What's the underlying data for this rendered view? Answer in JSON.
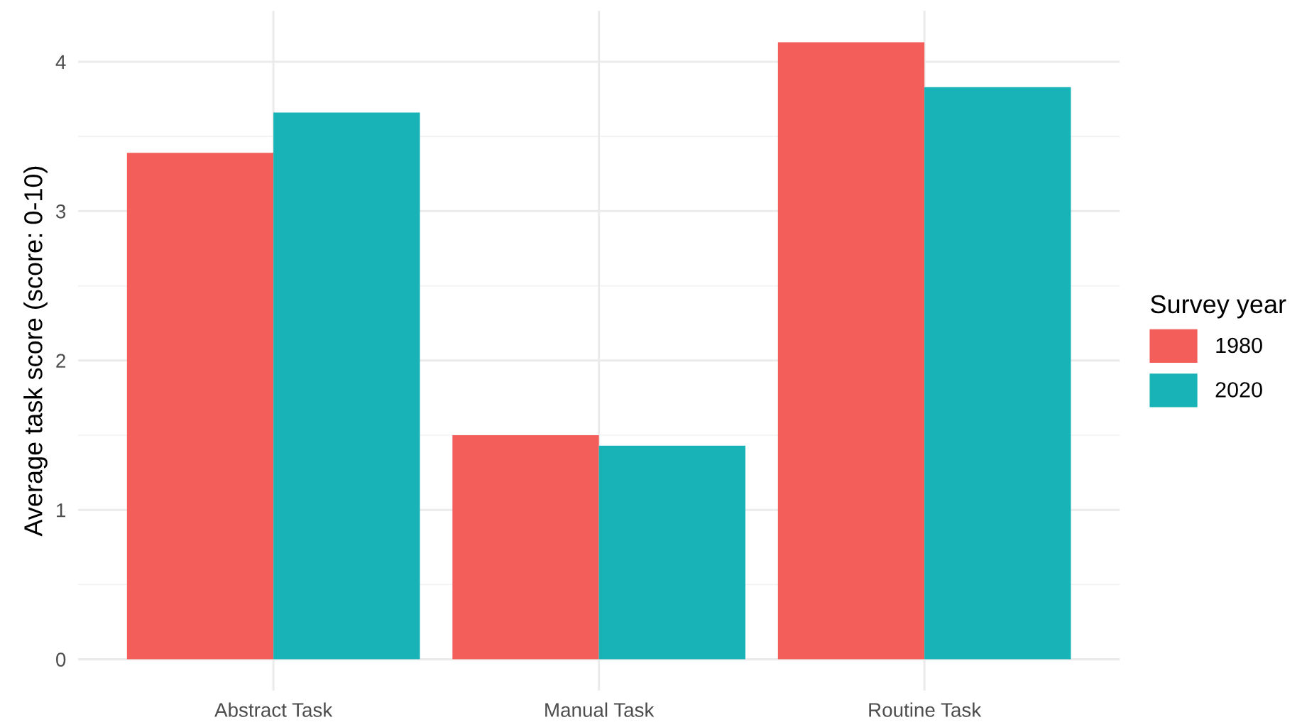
{
  "chart_data": {
    "type": "bar",
    "ylabel": "Average task score (score: 0-10)",
    "legend_title": "Survey year",
    "categories": [
      "Abstract Task",
      "Manual Task",
      "Routine Task"
    ],
    "series": [
      {
        "name": "1980",
        "color": "#f35e5a",
        "values": [
          3.39,
          1.5,
          4.13
        ]
      },
      {
        "name": "2020",
        "color": "#17b3b7",
        "values": [
          3.66,
          1.43,
          3.83
        ]
      }
    ],
    "ylim": [
      -0.21,
      4.34
    ],
    "yticks": [
      0,
      1,
      2,
      3,
      4
    ],
    "grid": true,
    "legend": "right"
  }
}
